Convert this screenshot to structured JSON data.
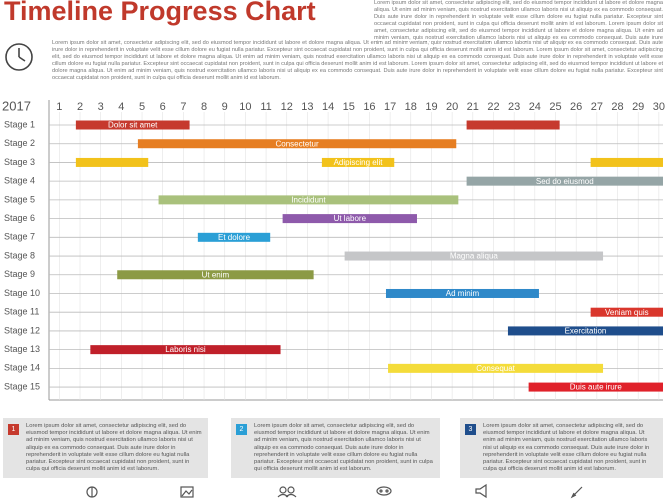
{
  "chart_data": {
    "type": "gantt",
    "title": "Timeline Progress Chart",
    "year_label": "2017",
    "header_text": "Lorem ipsum dolor sit amet, consectetur adipiscing elit, sed do eiusmod tempor incididunt ut labore et dolore magna aliqua. Ut enim ad minim veniam, quis nostrud exercitation ullamco laboris nisi ut aliquip ex ea commodo consequat. Duis aute irure dolor in reprehenderit in voluptate velit esse cillum dolore eu fugiat nulla pariatur. Excepteur sint occaecat cupidatat non proident, sunt in culpa qui officia deserunt mollit anim id est laborum. Lorem ipsum dolor sit amet, consectetur adipiscing elit, sed do eiusmod tempor incididunt ut labore et dolore magna aliqua. Ut enim ad minim veniam, quis nostrud exercitation ullamco laboris nisi ut aliquip ex ea commodo consequat. Duis aute irure dolor in reprehenderit in voluptate velit esse cillum dolore eu fugiat nulla pariatur.",
    "intro_text": "Lorem ipsum dolor sit amet, consectetur adipiscing elit, sed do eiusmod tempor incididunt ut labore et dolore magna aliqua. Ut enim ad minim veniam, quis nostrud exercitation ullamco laboris nisi ut aliquip ex ea commodo consequat. Duis aute irure dolor in reprehenderit in voluptate velit esse cillum dolore eu fugiat nulla pariatur. Excepteur sint occaecat cupidatat non proident, sunt in culpa qui officia deserunt mollit anim id est laborum. Lorem ipsum dolor sit amet, consectetur adipiscing elit, sed do eiusmod tempor incididunt ut labore et dolore magna aliqua. Ut enim ad minim veniam, quis nostrud exercitation ullamco laboris nisi ut aliquip ex ea commodo consequat. Duis aute irure dolor in reprehenderit in voluptate velit esse cillum dolore eu fugiat nulla pariatur. Excepteur sint occaecat cupidatat non proident, sunt in culpa qui officia deserunt mollit anim id est laborum. Lorem ipsum dolor sit amet, consectetur adipiscing elit, sed do eiusmod tempor incididunt ut labore et dolore magna aliqua. Ut enim ad minim veniam, quis nostrud exercitation ullamco laboris nisi ut aliquip ex ea commodo consequat. Duis aute irure dolor in reprehenderit in voluptate velit esse cillum dolore eu fugiat nulla pariatur. Excepteur sint occaecat cupidatat non proident, sunt in culpa qui officia deserunt mollit anim id est laborum.",
    "xlim": [
      0.5,
      30.2
    ],
    "xticks": [
      1,
      2,
      3,
      4,
      5,
      6,
      7,
      8,
      9,
      10,
      11,
      12,
      13,
      14,
      15,
      16,
      17,
      18,
      19,
      20,
      21,
      22,
      23,
      24,
      25,
      26,
      27,
      28,
      29,
      30
    ],
    "rows": [
      {
        "name": "Stage 1",
        "segments": [
          {
            "start": 1.8,
            "end": 7.3,
            "label": "Dolor sit amet",
            "color": "#c63a2e"
          },
          {
            "start": 20.7,
            "end": 25.2,
            "color": "#c63a2e"
          }
        ]
      },
      {
        "name": "Stage 2",
        "segments": [
          {
            "start": 4.8,
            "end": 20.2,
            "label": "Consectetur",
            "color": "#e67e22"
          }
        ]
      },
      {
        "name": "Stage 3",
        "segments": [
          {
            "start": 1.8,
            "end": 5.3,
            "color": "#f2c21b"
          },
          {
            "start": 13.7,
            "end": 17.2,
            "label": "Adipiscing elit",
            "color": "#f2c21b"
          },
          {
            "start": 26.7,
            "end": 30.2,
            "color": "#f2c21b"
          }
        ]
      },
      {
        "name": "Stage 4",
        "segments": [
          {
            "start": 20.7,
            "end": 30.2,
            "label": "Sed do eiusmod",
            "color": "#95a5a6"
          }
        ]
      },
      {
        "name": "Stage 5",
        "segments": [
          {
            "start": 5.8,
            "end": 20.3,
            "label": "Incididunt",
            "color": "#a9c17c"
          }
        ]
      },
      {
        "name": "Stage 6",
        "segments": [
          {
            "start": 11.8,
            "end": 18.3,
            "label": "Ut labore",
            "color": "#8e5aab"
          }
        ]
      },
      {
        "name": "Stage 7",
        "segments": [
          {
            "start": 7.7,
            "end": 11.2,
            "label": "Et dolore",
            "color": "#2a9fd6"
          }
        ]
      },
      {
        "name": "Stage 8",
        "segments": [
          {
            "start": 14.8,
            "end": 27.3,
            "label": "Magna aliqua",
            "color": "#c5c6c8"
          }
        ]
      },
      {
        "name": "Stage 9",
        "segments": [
          {
            "start": 3.8,
            "end": 13.3,
            "label": "Ut enim",
            "color": "#8c9a45"
          }
        ]
      },
      {
        "name": "Stage 10",
        "segments": [
          {
            "start": 16.8,
            "end": 24.2,
            "label": "Ad minim",
            "color": "#2f89c9"
          }
        ]
      },
      {
        "name": "Stage 11",
        "segments": [
          {
            "start": 26.7,
            "end": 30.2,
            "label": "Veniam quis",
            "color": "#d9362c"
          }
        ]
      },
      {
        "name": "Stage 12",
        "segments": [
          {
            "start": 22.7,
            "end": 30.2,
            "label": "Exercitation",
            "color": "#1f4e8c"
          }
        ]
      },
      {
        "name": "Stage 13",
        "segments": [
          {
            "start": 2.5,
            "end": 11.7,
            "label": "Laboris nisi",
            "color": "#c0202a"
          }
        ]
      },
      {
        "name": "Stage 14",
        "segments": [
          {
            "start": 16.9,
            "end": 27.3,
            "label": "Consequat",
            "color": "#f4dc3a"
          }
        ]
      },
      {
        "name": "Stage 15",
        "segments": [
          {
            "start": 23.7,
            "end": 30.2,
            "label": "Duis aute irure",
            "color": "#e0212a"
          }
        ]
      }
    ],
    "notes": [
      {
        "number": "1",
        "color": "#c63a2e",
        "text": "Lorem ipsum dolor sit amet, consectetur adipiscing elit, sed do eiusmod tempor incididunt ut labore et dolore magna aliqua. Ut enim ad minim veniam, quis nostrud exercitation ullamco laboris nisi ut aliquip ex ea commodo consequat. Duis aute irure dolor in reprehenderit in voluptate velit esse cillum dolore eu fugiat nulla pariatur. Excepteur sint occaecat cupidatat non proident, sunt in culpa qui officia deserunt mollit anim id est laborum."
      },
      {
        "number": "2",
        "color": "#2a9fd6",
        "text": "Lorem ipsum dolor sit amet, consectetur adipiscing elit, sed do eiusmod tempor incididunt ut labore et dolore magna aliqua. Ut enim ad minim veniam, quis nostrud exercitation ullamco laboris nisi ut aliquip ex ea commodo consequat. Duis aute irure dolor in reprehenderit in voluptate velit esse cillum dolore eu fugiat nulla pariatur. Excepteur sint occaecat cupidatat non proident, sunt in culpa qui officia deserunt mollit anim id est laborum."
      },
      {
        "number": "3",
        "color": "#1f4e8c",
        "text": "Lorem ipsum dolor sit amet, consectetur adipiscing elit, sed do eiusmod tempor incididunt ut labore et dolore magna aliqua. Ut enim ad minim veniam, quis nostrud exercitation ullamco laboris nisi ut aliquip ex ea commodo consequat. Duis aute irure dolor in reprehenderit in voluptate velit esse cillum dolore eu fugiat nulla pariatur. Excepteur sint occaecat cupidatat non proident, sunt in culpa qui officia deserunt mollit anim id est laborum."
      }
    ]
  }
}
